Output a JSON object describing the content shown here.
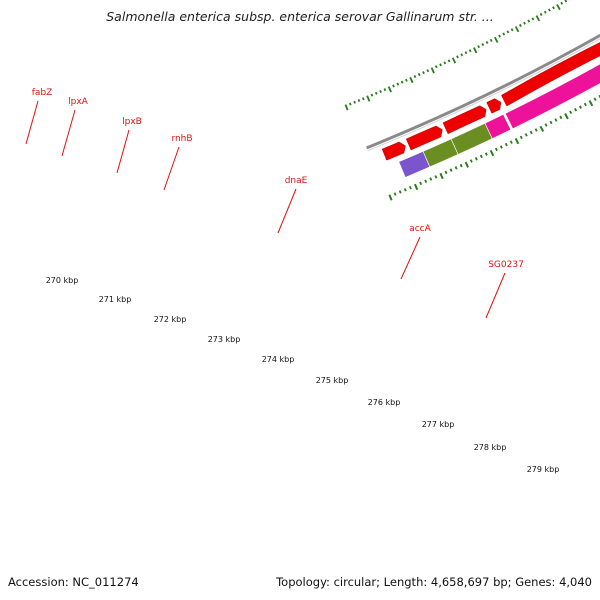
{
  "title": "Salmonella enterica subsp. enterica serovar Gallinarum str. ...",
  "footer": {
    "accession": "Accession: NC_011274",
    "summary": "Topology: circular; Length: 4,658,697 bp; Genes: 4,040"
  },
  "colors": {
    "gene_label": "#dd1111",
    "tick": "#2a7a1e",
    "cds_arrow": "#ee0000",
    "backbone": "#8a8a8a"
  },
  "kbp_labels": [
    "270 kbp",
    "271 kbp",
    "272 kbp",
    "273 kbp",
    "274 kbp",
    "275 kbp",
    "276 kbp",
    "277 kbp",
    "278 kbp",
    "279 kbp"
  ],
  "genes": [
    {
      "name": "fabZ",
      "color": "#7a55cc"
    },
    {
      "name": "lpxA",
      "color": "#6b8e23"
    },
    {
      "name": "lpxB",
      "color": "#6b8e23"
    },
    {
      "name": "rnhB",
      "color": "#ee1199"
    },
    {
      "name": "dnaE",
      "color": "#ee1199"
    },
    {
      "name": "accA",
      "color": "#7a55cc"
    },
    {
      "name": "SG0237",
      "color": "#c0c0c0"
    },
    {
      "name": "",
      "color": "#4a7fb5"
    }
  ]
}
